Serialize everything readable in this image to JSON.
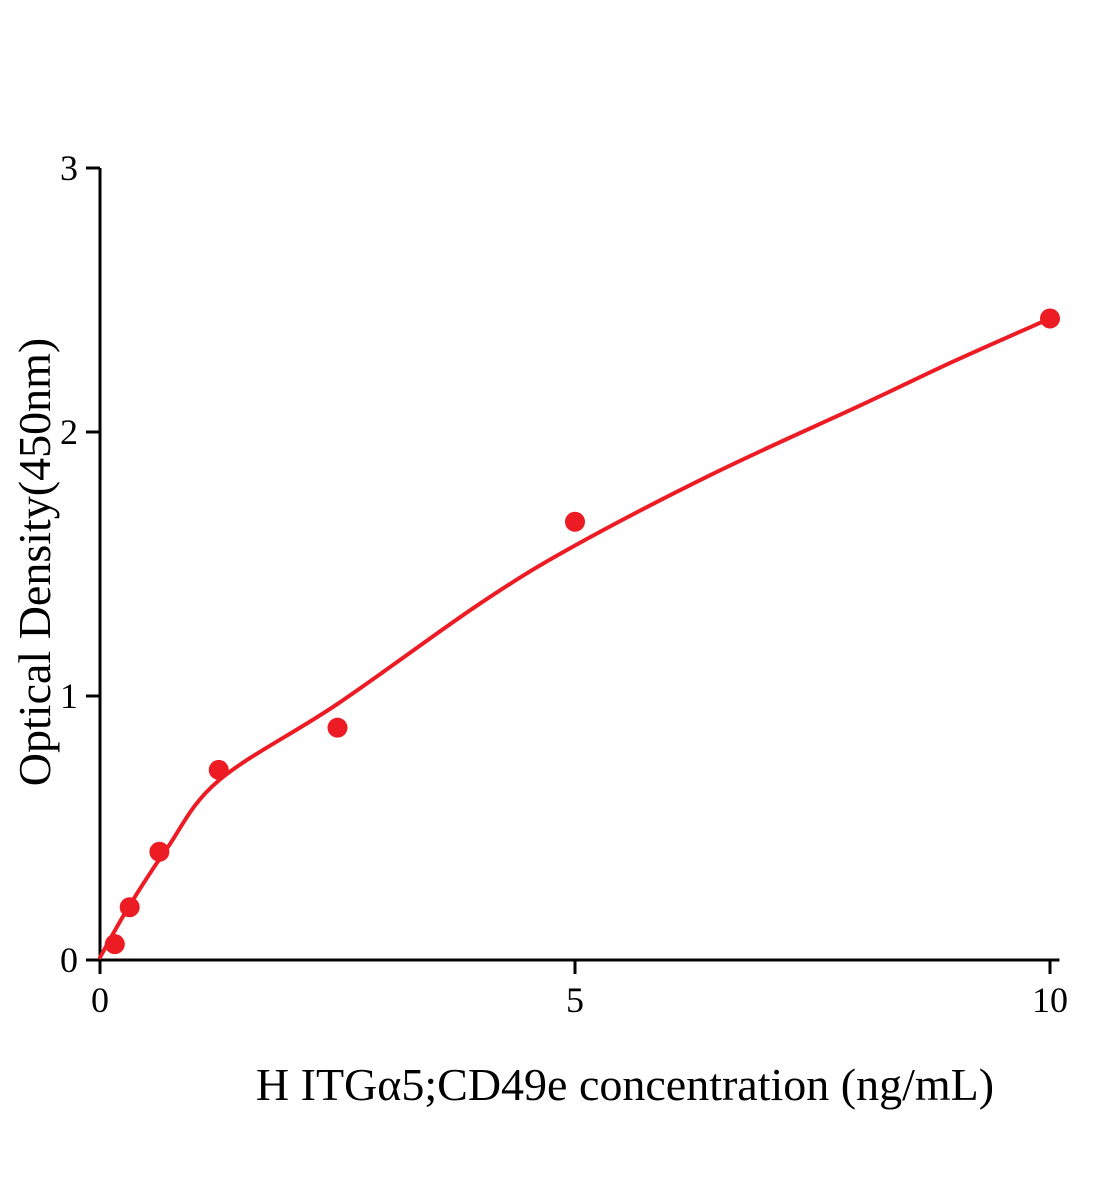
{
  "chart_data": {
    "type": "scatter",
    "title": "",
    "xlabel": "H ITGα5;CD49e concentration (ng/mL)",
    "ylabel": "Optical Density(450nm)",
    "x": [
      0.156,
      0.3125,
      0.625,
      1.25,
      2.5,
      5,
      10
    ],
    "y": [
      0.06,
      0.2,
      0.41,
      0.72,
      0.88,
      1.66,
      2.43
    ],
    "fit_curve": {
      "x": [
        0,
        0.3,
        0.7,
        1.25,
        2.5,
        4,
        5,
        6.5,
        8,
        9,
        10
      ],
      "y": [
        0.01,
        0.2,
        0.42,
        0.68,
        0.97,
        1.35,
        1.57,
        1.85,
        2.1,
        2.27,
        2.43
      ]
    },
    "x_ticks": [
      0,
      5,
      10
    ],
    "y_ticks": [
      0,
      1,
      2,
      3
    ],
    "xlim": [
      0,
      10.1
    ],
    "ylim": [
      0,
      3
    ],
    "grid": false,
    "legend": null,
    "point_color": "#ed1c24",
    "line_color": "#ed1c24",
    "axis_color": "#000000"
  }
}
